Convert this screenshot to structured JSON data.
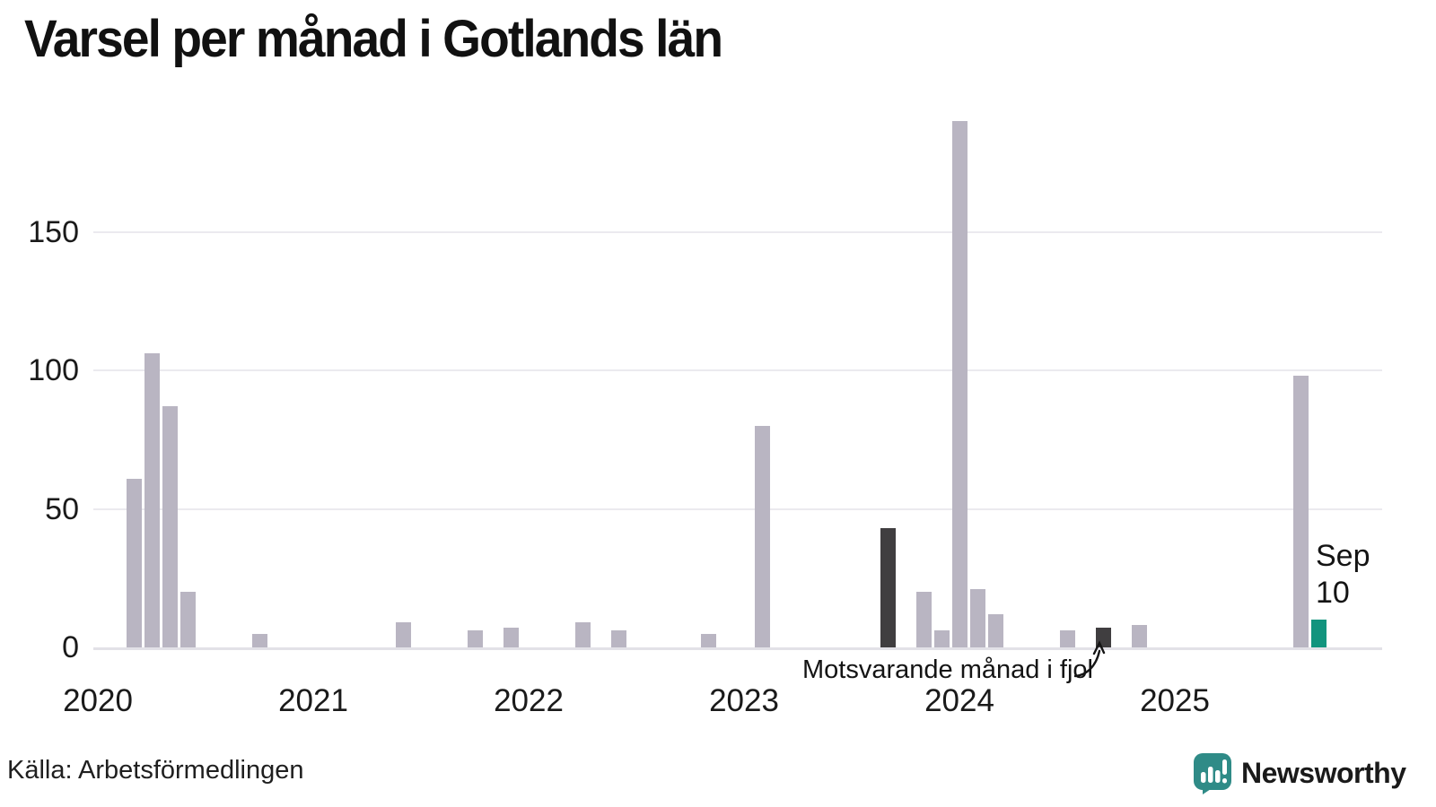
{
  "title": "Varsel per månad i Gotlands län",
  "source": "Källa: Arbetsförmedlingen",
  "brand": {
    "name": "Newsworthy",
    "color": "#2f8b87"
  },
  "annotation": {
    "text": "Motsvarande månad i fjol"
  },
  "latest": {
    "month_label": "Sep",
    "value_label": "10"
  },
  "colors": {
    "bar_default": "#b9b5c2",
    "bar_reference": "#403e40",
    "bar_current": "#12947e",
    "gridline": "#ebeaef",
    "baseline": "#e2e1e7",
    "text": "#1a1a1a"
  },
  "chart_data": {
    "type": "bar",
    "title": "Varsel per månad i Gotlands län",
    "xlabel": "",
    "ylabel": "",
    "x_tick_labels": [
      "2020",
      "2021",
      "2022",
      "2023",
      "2024",
      "2025"
    ],
    "y_ticks": [
      0,
      50,
      100,
      150
    ],
    "ylim": [
      0,
      195
    ],
    "grid": true,
    "legend_position": "none",
    "points": [
      {
        "month": "2020-03",
        "value": 61,
        "role": "default"
      },
      {
        "month": "2020-04",
        "value": 106,
        "role": "default"
      },
      {
        "month": "2020-05",
        "value": 87,
        "role": "default"
      },
      {
        "month": "2020-06",
        "value": 20,
        "role": "default"
      },
      {
        "month": "2020-10",
        "value": 5,
        "role": "default"
      },
      {
        "month": "2021-06",
        "value": 9,
        "role": "default"
      },
      {
        "month": "2021-10",
        "value": 6,
        "role": "default"
      },
      {
        "month": "2021-12",
        "value": 7,
        "role": "default"
      },
      {
        "month": "2022-04",
        "value": 9,
        "role": "default"
      },
      {
        "month": "2022-06",
        "value": 6,
        "role": "default"
      },
      {
        "month": "2022-11",
        "value": 5,
        "role": "default"
      },
      {
        "month": "2023-02",
        "value": 80,
        "role": "default"
      },
      {
        "month": "2023-09",
        "value": 43,
        "role": "same-month-previous"
      },
      {
        "month": "2023-11",
        "value": 20,
        "role": "default"
      },
      {
        "month": "2023-12",
        "value": 6,
        "role": "default"
      },
      {
        "month": "2024-01",
        "value": 190,
        "role": "default"
      },
      {
        "month": "2024-02",
        "value": 21,
        "role": "default"
      },
      {
        "month": "2024-03",
        "value": 12,
        "role": "default"
      },
      {
        "month": "2024-07",
        "value": 6,
        "role": "default"
      },
      {
        "month": "2024-09",
        "value": 7,
        "role": "same-month-previous"
      },
      {
        "month": "2024-11",
        "value": 8,
        "role": "default"
      },
      {
        "month": "2025-08",
        "value": 98,
        "role": "default"
      },
      {
        "month": "2025-09",
        "value": 10,
        "role": "current"
      }
    ]
  }
}
